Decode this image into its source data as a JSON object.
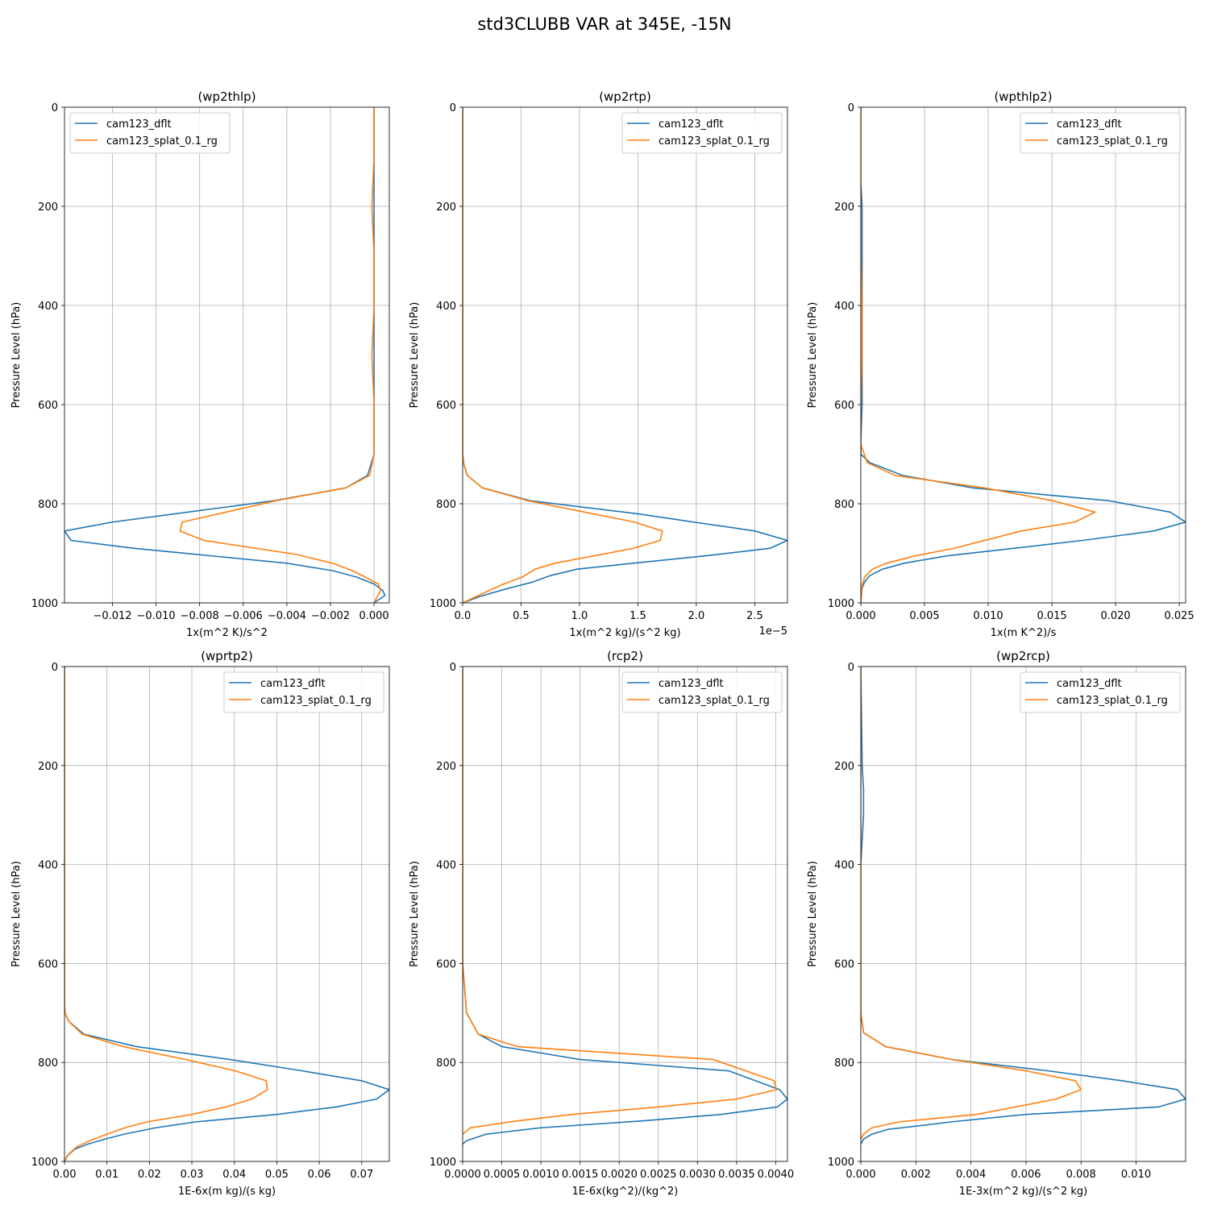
{
  "figure": {
    "title": "std3CLUBB VAR at 345E, -15N"
  },
  "colors": {
    "dflt": "#1f77b4",
    "splat": "#ff7f0e"
  },
  "chart_data": [
    {
      "type": "line",
      "title": "(wp2thlp)",
      "xlabel": "1x(m^2 K)/s^2",
      "ylabel": "Pressure Level (hPa)",
      "xlim": [
        -0.0142,
        0.0007
      ],
      "ylim": [
        1000,
        0
      ],
      "xticks": [
        -0.012,
        -0.01,
        -0.008,
        -0.006,
        -0.004,
        -0.002,
        0.0
      ],
      "xtick_labels": [
        "−0.012",
        "−0.010",
        "−0.008",
        "−0.006",
        "−0.004",
        "−0.002",
        "0.000"
      ],
      "yticks": [
        0,
        200,
        400,
        600,
        800,
        1000
      ],
      "ytick_labels": [
        "0",
        "200",
        "400",
        "600",
        "800",
        "1000"
      ],
      "offset_text": "",
      "legend_loc": "upper-left",
      "series": [
        {
          "name": "cam123_dflt",
          "x": [
            0.0,
            0.0,
            0.0,
            0.0,
            0.0,
            0.0,
            0.0,
            0.0,
            -0.0003,
            -0.0013,
            -0.0046,
            -0.012,
            -0.0142,
            -0.0139,
            -0.011,
            -0.004,
            -0.0019,
            -0.0008,
            0.0,
            0.0004,
            0.0005,
            0.0
          ],
          "y": [
            0,
            100,
            200,
            300,
            400,
            500,
            600,
            700,
            743,
            768,
            794,
            837,
            855,
            874,
            890,
            920,
            935,
            948,
            962,
            975,
            985,
            1000
          ]
        },
        {
          "name": "cam123_splat_0.1_rg",
          "x": [
            0.0,
            0.0,
            -0.0001,
            0.0,
            0.0,
            -0.0001,
            0.0,
            0.0,
            -0.0002,
            -0.0013,
            -0.0045,
            -0.0068,
            -0.0088,
            -0.0089,
            -0.0078,
            -0.0036,
            -0.0019,
            -0.001,
            -0.0004,
            0.0002,
            0.0003,
            0.0
          ],
          "y": [
            0,
            100,
            200,
            300,
            400,
            500,
            600,
            700,
            743,
            768,
            794,
            817,
            837,
            855,
            874,
            902,
            920,
            935,
            948,
            962,
            975,
            1000
          ]
        }
      ]
    },
    {
      "type": "line",
      "title": "(wp2rtp)",
      "xlabel": "1x(m^2 kg)/(s^2 kg)",
      "ylabel": "Pressure Level (hPa)",
      "xlim": [
        0,
        2.78
      ],
      "ylim": [
        1000,
        0
      ],
      "xticks": [
        0.0,
        0.5,
        1.0,
        1.5,
        2.0,
        2.5
      ],
      "xtick_labels": [
        "0.0",
        "0.5",
        "1.0",
        "1.5",
        "2.0",
        "2.5"
      ],
      "yticks": [
        0,
        200,
        400,
        600,
        800,
        1000
      ],
      "ytick_labels": [
        "0",
        "200",
        "400",
        "600",
        "800",
        "1000"
      ],
      "offset_text": "1e−5",
      "legend_loc": "upper-right",
      "series": [
        {
          "name": "cam123_dflt",
          "x": [
            0,
            0,
            0,
            0,
            0,
            0.01,
            0.04,
            0.17,
            0.58,
            1.49,
            2.5,
            2.78,
            2.63,
            2.08,
            1.46,
            0.98,
            0.75,
            0.6,
            0.4,
            0.25,
            0.15,
            0.0
          ],
          "y": [
            0,
            200,
            400,
            600,
            700,
            720,
            743,
            768,
            794,
            820,
            855,
            874,
            890,
            905,
            920,
            932,
            945,
            958,
            970,
            980,
            987,
            1000
          ]
        },
        {
          "name": "cam123_splat_0.1_rg",
          "x": [
            0,
            0,
            0,
            0,
            0,
            0.01,
            0.04,
            0.17,
            0.56,
            1.47,
            1.71,
            1.69,
            1.46,
            0.79,
            0.62,
            0.51,
            0.35,
            0.2,
            0.0
          ],
          "y": [
            0,
            200,
            400,
            600,
            700,
            720,
            743,
            768,
            794,
            837,
            855,
            874,
            890,
            920,
            932,
            948,
            962,
            978,
            1000
          ]
        }
      ]
    },
    {
      "type": "line",
      "title": "(wpthlp2)",
      "xlabel": "1x(m K^2)/s",
      "ylabel": "Pressure Level (hPa)",
      "xlim": [
        0,
        0.0255
      ],
      "ylim": [
        1000,
        0
      ],
      "xticks": [
        0.0,
        0.005,
        0.01,
        0.015,
        0.02,
        0.025
      ],
      "xtick_labels": [
        "0.000",
        "0.005",
        "0.010",
        "0.015",
        "0.020",
        "0.025"
      ],
      "yticks": [
        0,
        200,
        400,
        600,
        800,
        1000
      ],
      "ytick_labels": [
        "0",
        "200",
        "400",
        "600",
        "800",
        "1000"
      ],
      "offset_text": "",
      "legend_loc": "upper-right",
      "series": [
        {
          "name": "cam123_dflt",
          "x": [
            0.0,
            0.0,
            0.0001,
            0.0001,
            0.0001,
            0.0001,
            0.0001,
            0.0,
            0.0,
            0.0007,
            0.0033,
            0.0088,
            0.0195,
            0.0243,
            0.0255,
            0.023,
            0.0174,
            0.012,
            0.0068,
            0.0034,
            0.0017,
            0.0007,
            0.0003,
            0.0001,
            0.0
          ],
          "y": [
            0,
            150,
            200,
            300,
            400,
            500,
            600,
            680,
            700,
            717,
            743,
            768,
            794,
            817,
            837,
            855,
            874,
            890,
            905,
            920,
            932,
            945,
            958,
            970,
            1000
          ]
        },
        {
          "name": "cam123_splat_0.1_rg",
          "x": [
            0.0,
            0.0,
            0.0,
            0.0001,
            0.0001,
            0.0,
            0.0,
            0.0005,
            0.0027,
            0.0097,
            0.0151,
            0.0184,
            0.0168,
            0.0126,
            0.0073,
            0.0043,
            0.002,
            0.0009,
            0.0003,
            0.0001,
            0.0
          ],
          "y": [
            0,
            200,
            300,
            400,
            500,
            600,
            680,
            717,
            743,
            768,
            794,
            817,
            837,
            855,
            890,
            905,
            920,
            932,
            948,
            965,
            1000
          ]
        }
      ]
    },
    {
      "type": "line",
      "title": "(wprtp2)",
      "xlabel": "1E-6x(m kg)/(s kg)",
      "ylabel": "Pressure Level (hPa)",
      "xlim": [
        0,
        0.0765
      ],
      "ylim": [
        1000,
        0
      ],
      "xticks": [
        0.0,
        0.01,
        0.02,
        0.03,
        0.04,
        0.05,
        0.06,
        0.07
      ],
      "xtick_labels": [
        "0.00",
        "0.01",
        "0.02",
        "0.03",
        "0.04",
        "0.05",
        "0.06",
        "0.07"
      ],
      "yticks": [
        0,
        200,
        400,
        600,
        800,
        1000
      ],
      "ytick_labels": [
        "0",
        "200",
        "400",
        "600",
        "800",
        "1000"
      ],
      "offset_text": "",
      "legend_loc": "upper-right",
      "series": [
        {
          "name": "cam123_dflt",
          "x": [
            0,
            0,
            0,
            0,
            0,
            0.0001,
            0.001,
            0.0046,
            0.017,
            0.039,
            0.056,
            0.07,
            0.0765,
            0.0735,
            0.064,
            0.05,
            0.031,
            0.0215,
            0.014,
            0.0095,
            0.0055,
            0.0025,
            0.0007,
            0.0
          ],
          "y": [
            0,
            200,
            400,
            600,
            680,
            700,
            717,
            743,
            768,
            794,
            817,
            837,
            855,
            874,
            890,
            905,
            920,
            932,
            945,
            955,
            965,
            975,
            988,
            1000
          ]
        },
        {
          "name": "cam123_splat_0.1_rg",
          "x": [
            0,
            0,
            0,
            0,
            0,
            0.0001,
            0.001,
            0.0042,
            0.0138,
            0.0285,
            0.0402,
            0.0475,
            0.0478,
            0.0441,
            0.038,
            0.03,
            0.0195,
            0.0142,
            0.01,
            0.006,
            0.003,
            0.001,
            0.0
          ],
          "y": [
            0,
            200,
            400,
            600,
            680,
            700,
            717,
            743,
            768,
            794,
            817,
            837,
            855,
            874,
            890,
            905,
            920,
            932,
            945,
            958,
            970,
            985,
            1000
          ]
        }
      ]
    },
    {
      "type": "line",
      "title": "(rcp2)",
      "xlabel": "1E-6x(kg^2)/(kg^2)",
      "ylabel": "Pressure Level (hPa)",
      "xlim": [
        0,
        0.00415
      ],
      "ylim": [
        1000,
        0
      ],
      "xticks": [
        0.0,
        0.0005,
        0.001,
        0.0015,
        0.002,
        0.0025,
        0.003,
        0.0035,
        0.004
      ],
      "xtick_labels": [
        "0.0000",
        "0.0005",
        "0.0010",
        "0.0015",
        "0.0020",
        "0.0025",
        "0.0030",
        "0.0035",
        "0.0040"
      ],
      "yticks": [
        0,
        200,
        400,
        600,
        800,
        1000
      ],
      "ytick_labels": [
        "0",
        "200",
        "400",
        "600",
        "800",
        "1000"
      ],
      "offset_text": "",
      "legend_loc": "upper-right",
      "series": [
        {
          "name": "cam123_dflt",
          "x": [
            0,
            0,
            0,
            0.0,
            5e-05,
            0.0002,
            0.0005,
            0.0015,
            0.0034,
            0.00405,
            0.00415,
            0.00402,
            0.0033,
            0.0023,
            0.001,
            0.0003,
            5e-05,
            0.0
          ],
          "y": [
            0,
            200,
            400,
            600,
            700,
            743,
            768,
            794,
            817,
            855,
            874,
            890,
            905,
            918,
            932,
            945,
            958,
            965
          ]
        },
        {
          "name": "cam123_splat_0.1_rg",
          "x": [
            0,
            0,
            0,
            0.0,
            5e-05,
            0.0002,
            0.0007,
            0.0032,
            0.00398,
            0.00401,
            0.0035,
            0.0025,
            0.0014,
            0.0007,
            0.0001,
            0.0
          ],
          "y": [
            0,
            200,
            400,
            600,
            700,
            743,
            768,
            794,
            837,
            855,
            874,
            890,
            905,
            918,
            932,
            945
          ]
        }
      ]
    },
    {
      "type": "line",
      "title": "(wp2rcp)",
      "xlabel": "1E-3x(m^2 kg)/(s^2 kg)",
      "ylabel": "Pressure Level (hPa)",
      "xlim": [
        0,
        0.0118
      ],
      "ylim": [
        1000,
        0
      ],
      "xticks": [
        0.0,
        0.002,
        0.004,
        0.006,
        0.008,
        0.01
      ],
      "xtick_labels": [
        "0.000",
        "0.002",
        "0.004",
        "0.006",
        "0.008",
        "0.010"
      ],
      "yticks": [
        0,
        200,
        400,
        600,
        800,
        1000
      ],
      "ytick_labels": [
        "0",
        "200",
        "400",
        "600",
        "800",
        "1000"
      ],
      "offset_text": "",
      "legend_loc": "upper-right",
      "series": [
        {
          "name": "cam123_dflt",
          "x": [
            0,
            5e-05,
            0.0001,
            0.0001,
            0.0,
            0.0,
            0.0,
            0.0,
            0.0001,
            0.0009,
            0.0033,
            0.0068,
            0.0095,
            0.0115,
            0.0118,
            0.0108,
            0.006,
            0.0033,
            0.0015,
            0.001,
            0.0004,
            0.0001,
            0.0
          ],
          "y": [
            0,
            200,
            250,
            300,
            400,
            500,
            600,
            700,
            740,
            768,
            794,
            817,
            837,
            855,
            874,
            890,
            905,
            920,
            932,
            935,
            945,
            955,
            965
          ]
        },
        {
          "name": "cam123_splat_0.1_rg",
          "x": [
            0,
            0,
            0,
            0,
            0.0,
            0.0001,
            0.0009,
            0.0033,
            0.006,
            0.0078,
            0.008,
            0.0071,
            0.0042,
            0.0014,
            0.0004,
            0.0001,
            0.0
          ],
          "y": [
            0,
            200,
            400,
            600,
            700,
            740,
            768,
            794,
            817,
            837,
            855,
            874,
            905,
            920,
            932,
            945,
            955
          ]
        }
      ]
    }
  ]
}
